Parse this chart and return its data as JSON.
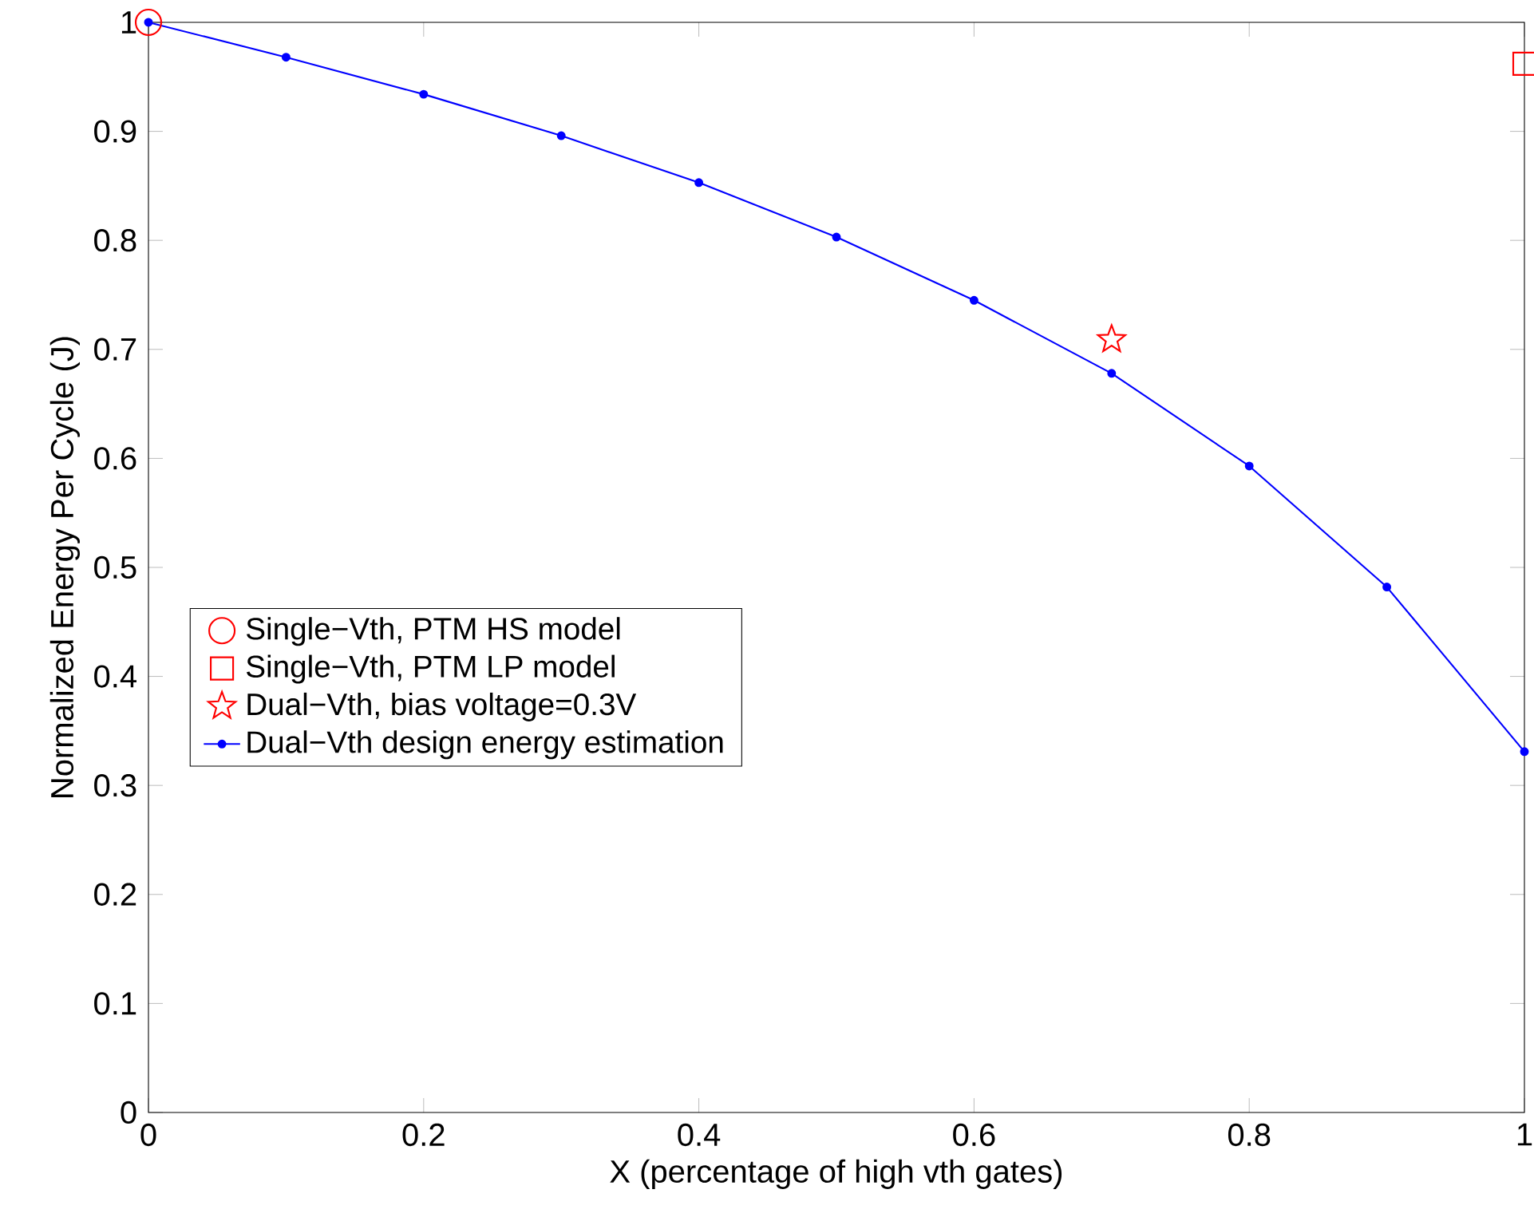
{
  "chart_data": {
    "type": "scatter",
    "xlabel": "X (percentage of high vth gates)",
    "ylabel": "Normalized Energy Per Cycle (J)",
    "xlim": [
      0,
      1
    ],
    "ylim": [
      0,
      1
    ],
    "xticks": [
      0,
      0.2,
      0.4,
      0.6,
      0.8,
      1
    ],
    "yticks": [
      0,
      0.1,
      0.2,
      0.3,
      0.4,
      0.5,
      0.6,
      0.7,
      0.8,
      0.9,
      1
    ],
    "grid": false,
    "legend": "left",
    "series": [
      {
        "name": "Single−Vth, PTM HS model",
        "marker": "circle",
        "color": "#ff0000",
        "x": [
          0
        ],
        "values": [
          1
        ]
      },
      {
        "name": "Single−Vth, PTM LP model",
        "marker": "square",
        "color": "#ff0000",
        "x": [
          1
        ],
        "values": [
          0.962
        ]
      },
      {
        "name": "Dual−Vth, bias voltage=0.3V",
        "marker": "star",
        "color": "#ff0000",
        "x": [
          0.7
        ],
        "values": [
          0.709
        ]
      },
      {
        "name": "Dual−Vth design energy estimation",
        "type": "line",
        "marker": "circle",
        "color": "#0000ff",
        "x": [
          0,
          0.1,
          0.2,
          0.3,
          0.4,
          0.5,
          0.6,
          0.7,
          0.8,
          0.9,
          1
        ],
        "values": [
          1,
          0.968,
          0.934,
          0.896,
          0.853,
          0.803,
          0.745,
          0.678,
          0.593,
          0.482,
          0.331
        ]
      }
    ]
  }
}
